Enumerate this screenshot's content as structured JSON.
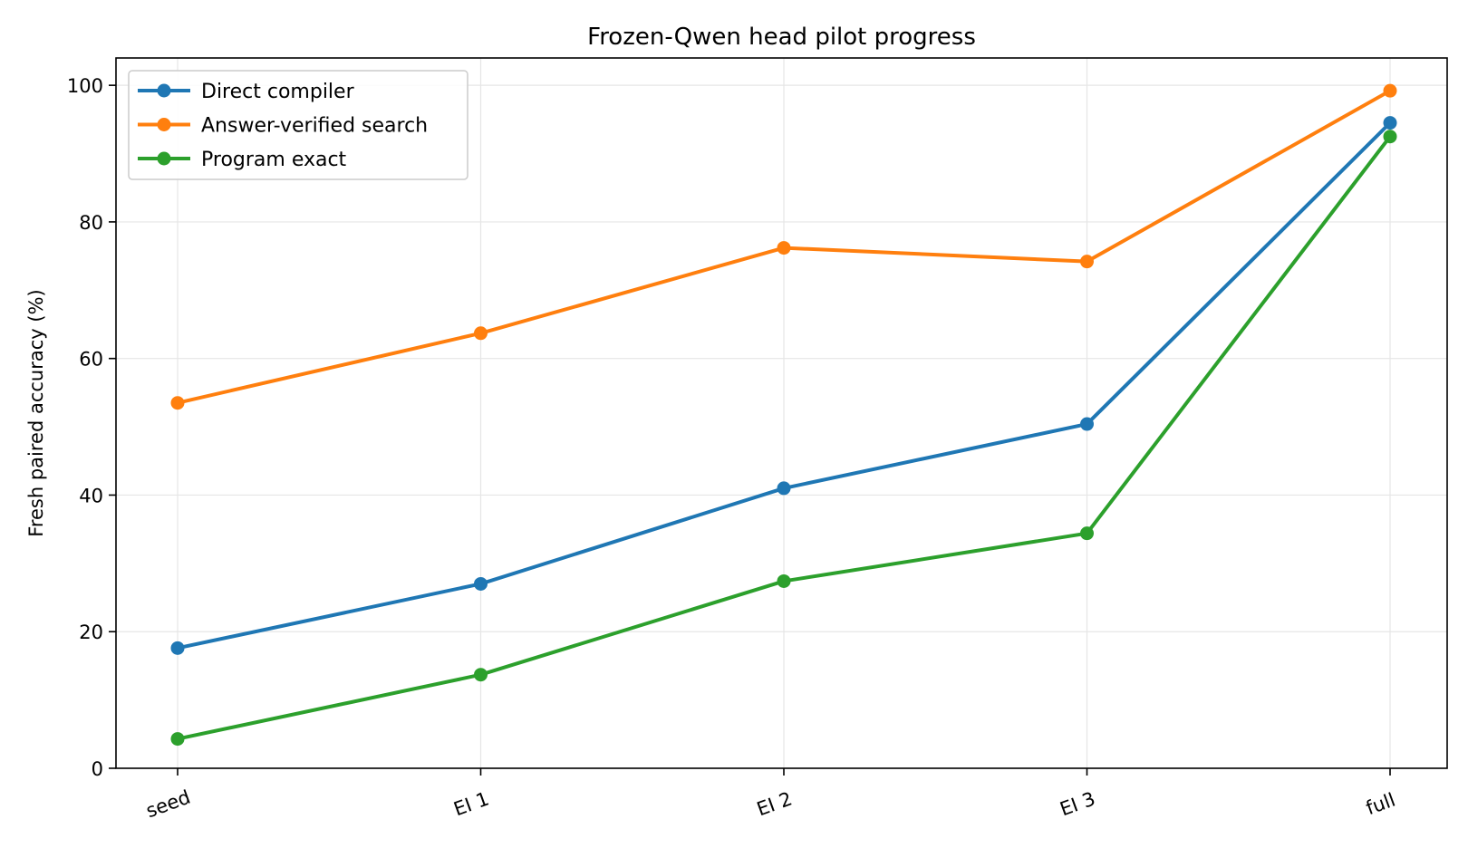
{
  "chart_data": {
    "type": "line",
    "title": "Frozen-Qwen head pilot progress",
    "xlabel": "",
    "ylabel": "Fresh paired accuracy (%)",
    "categories": [
      "seed",
      "EI 1",
      "EI 2",
      "EI 3",
      "full"
    ],
    "ylim": [
      0,
      104
    ],
    "yticks": [
      0,
      20,
      40,
      60,
      80,
      100
    ],
    "grid": true,
    "legend_position": "top-left",
    "series": [
      {
        "name": "Direct compiler",
        "color": "#1f77b4",
        "values": [
          17.6,
          27.0,
          41.0,
          50.4,
          94.5
        ]
      },
      {
        "name": "Answer-verified search",
        "color": "#ff7f0e",
        "values": [
          53.5,
          63.7,
          76.2,
          74.2,
          99.2
        ]
      },
      {
        "name": "Program exact",
        "color": "#2ca02c",
        "values": [
          4.3,
          13.7,
          27.4,
          34.4,
          92.5
        ]
      }
    ]
  }
}
